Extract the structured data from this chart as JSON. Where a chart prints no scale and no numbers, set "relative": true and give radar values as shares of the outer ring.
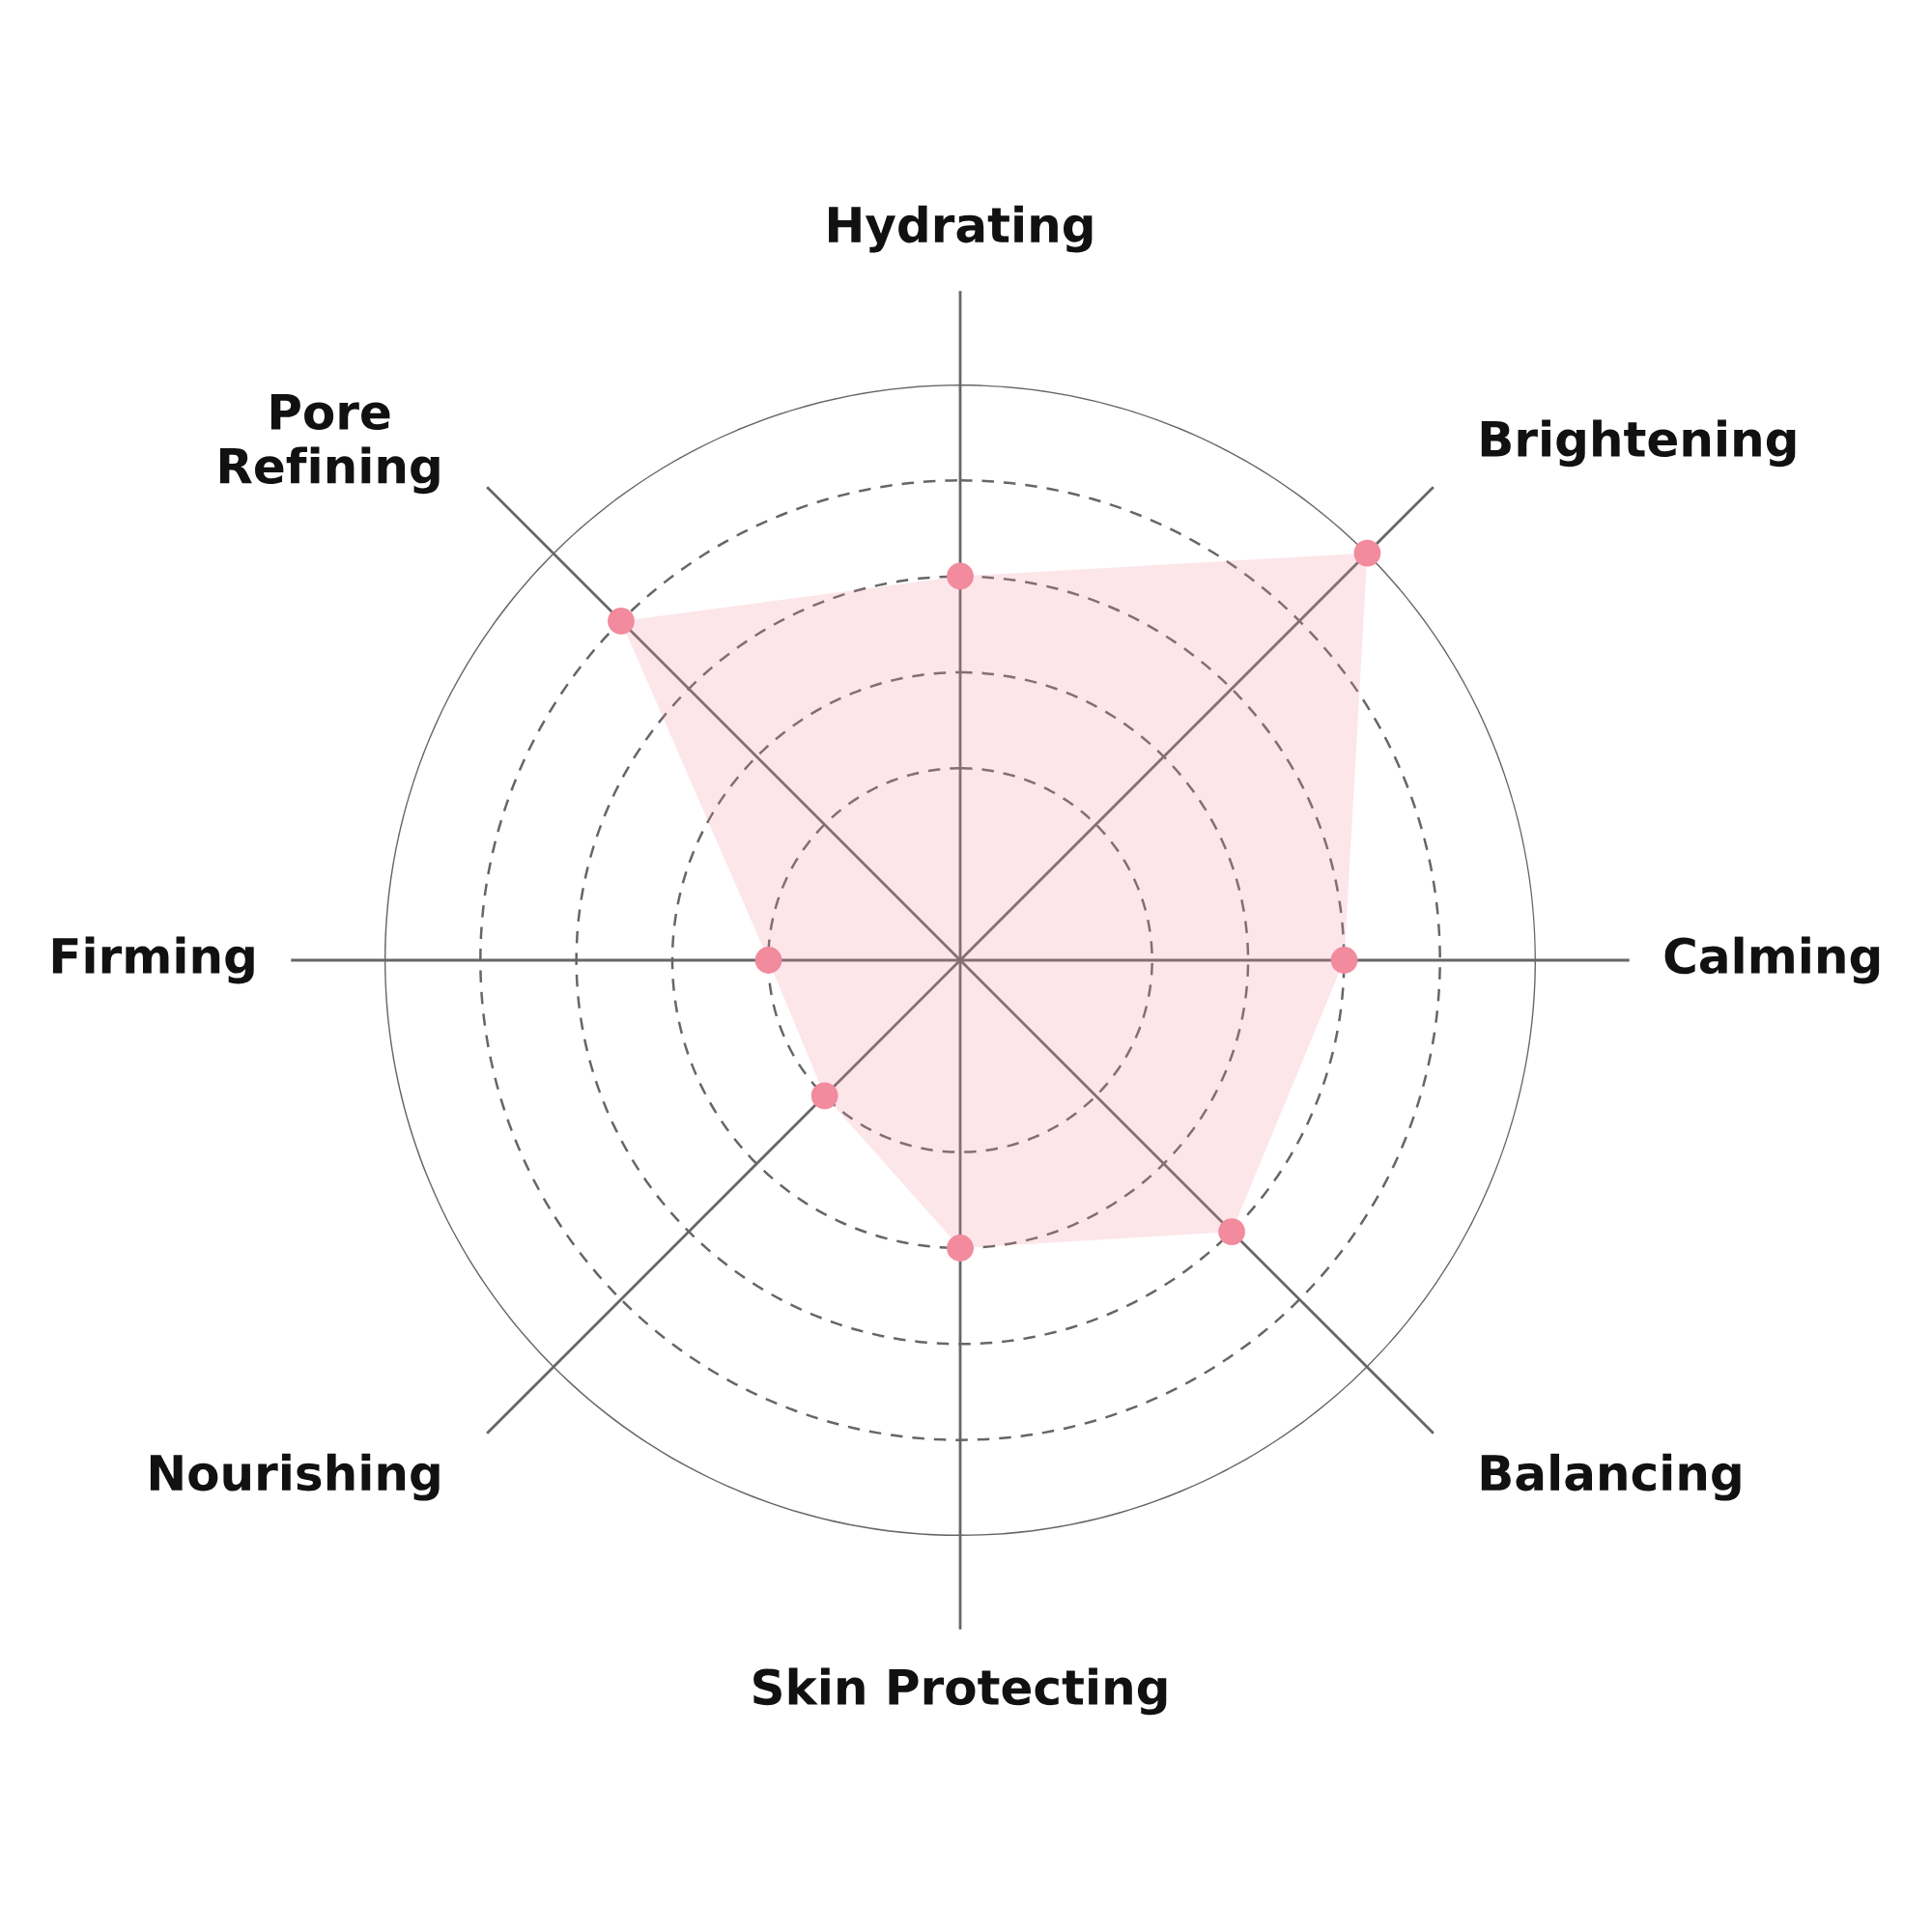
{
  "chart_data": {
    "type": "radar",
    "relative": true,
    "categories": [
      "Hydrating",
      "Brightening",
      "Calming",
      "Balancing",
      "Skin Protecting",
      "Nourishing",
      "Firming",
      "Pore\nRefining"
    ],
    "series": [
      {
        "color": "#f28b9d",
        "values": [
          0.667,
          1.0,
          0.667,
          0.667,
          0.5,
          0.333,
          0.333,
          0.833
        ]
      }
    ],
    "marker": "circle",
    "grid": true,
    "legend": false
  }
}
